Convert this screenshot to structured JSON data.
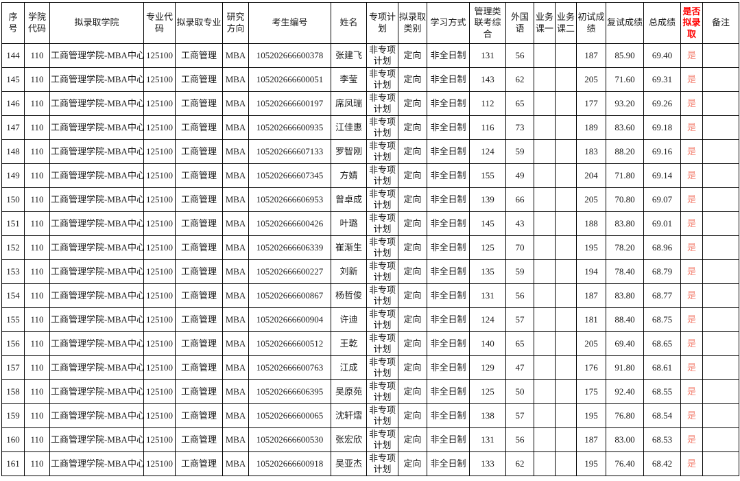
{
  "table": {
    "headers": [
      "序号",
      "学院代码",
      "拟录取学院",
      "专业代码",
      "拟录取专业",
      "研究方向",
      "考生编号",
      "姓名",
      "专项计划",
      "拟录取类别",
      "学习方式",
      "管理类联考综合",
      "外国语",
      "业务课一",
      "业务课二",
      "初试成绩",
      "复试成绩",
      "总成绩",
      "是否拟录取",
      "备注"
    ],
    "rows": [
      [
        "144",
        "110",
        "工商管理学院-MBA中心",
        "125100",
        "工商管理",
        "MBA",
        "105202666600378",
        "张建飞",
        "非专项计划",
        "定向",
        "非全日制",
        "131",
        "56",
        "",
        "",
        "187",
        "85.90",
        "69.40",
        "是",
        ""
      ],
      [
        "145",
        "110",
        "工商管理学院-MBA中心",
        "125100",
        "工商管理",
        "MBA",
        "105202666600051",
        "李莹",
        "非专项计划",
        "定向",
        "非全日制",
        "143",
        "62",
        "",
        "",
        "205",
        "71.60",
        "69.31",
        "是",
        ""
      ],
      [
        "146",
        "110",
        "工商管理学院-MBA中心",
        "125100",
        "工商管理",
        "MBA",
        "105202666600197",
        "席凤瑞",
        "非专项计划",
        "定向",
        "非全日制",
        "112",
        "65",
        "",
        "",
        "177",
        "93.20",
        "69.26",
        "是",
        ""
      ],
      [
        "147",
        "110",
        "工商管理学院-MBA中心",
        "125100",
        "工商管理",
        "MBA",
        "105202666600935",
        "江佳惠",
        "非专项计划",
        "定向",
        "非全日制",
        "116",
        "73",
        "",
        "",
        "189",
        "83.60",
        "69.18",
        "是",
        ""
      ],
      [
        "148",
        "110",
        "工商管理学院-MBA中心",
        "125100",
        "工商管理",
        "MBA",
        "105202666607133",
        "罗智刚",
        "非专项计划",
        "定向",
        "非全日制",
        "124",
        "59",
        "",
        "",
        "183",
        "88.20",
        "69.16",
        "是",
        ""
      ],
      [
        "149",
        "110",
        "工商管理学院-MBA中心",
        "125100",
        "工商管理",
        "MBA",
        "105202666607345",
        "方婧",
        "非专项计划",
        "定向",
        "非全日制",
        "155",
        "49",
        "",
        "",
        "204",
        "71.80",
        "69.14",
        "是",
        ""
      ],
      [
        "150",
        "110",
        "工商管理学院-MBA中心",
        "125100",
        "工商管理",
        "MBA",
        "105202666606953",
        "曾卓成",
        "非专项计划",
        "定向",
        "非全日制",
        "139",
        "66",
        "",
        "",
        "205",
        "70.80",
        "69.07",
        "是",
        ""
      ],
      [
        "151",
        "110",
        "工商管理学院-MBA中心",
        "125100",
        "工商管理",
        "MBA",
        "105202666600426",
        "叶璐",
        "非专项计划",
        "定向",
        "非全日制",
        "145",
        "43",
        "",
        "",
        "188",
        "83.80",
        "69.01",
        "是",
        ""
      ],
      [
        "152",
        "110",
        "工商管理学院-MBA中心",
        "125100",
        "工商管理",
        "MBA",
        "105202666606339",
        "崔渐生",
        "非专项计划",
        "定向",
        "非全日制",
        "125",
        "70",
        "",
        "",
        "195",
        "78.20",
        "68.96",
        "是",
        ""
      ],
      [
        "153",
        "110",
        "工商管理学院-MBA中心",
        "125100",
        "工商管理",
        "MBA",
        "105202666600227",
        "刘新",
        "非专项计划",
        "定向",
        "非全日制",
        "135",
        "59",
        "",
        "",
        "194",
        "78.40",
        "68.79",
        "是",
        ""
      ],
      [
        "154",
        "110",
        "工商管理学院-MBA中心",
        "125100",
        "工商管理",
        "MBA",
        "105202666600867",
        "杨哲俊",
        "非专项计划",
        "定向",
        "非全日制",
        "131",
        "56",
        "",
        "",
        "187",
        "83.80",
        "68.77",
        "是",
        ""
      ],
      [
        "155",
        "110",
        "工商管理学院-MBA中心",
        "125100",
        "工商管理",
        "MBA",
        "105202666600904",
        "许迪",
        "非专项计划",
        "定向",
        "非全日制",
        "124",
        "57",
        "",
        "",
        "181",
        "88.40",
        "68.75",
        "是",
        ""
      ],
      [
        "156",
        "110",
        "工商管理学院-MBA中心",
        "125100",
        "工商管理",
        "MBA",
        "105202666600512",
        "王乾",
        "非专项计划",
        "定向",
        "非全日制",
        "140",
        "65",
        "",
        "",
        "205",
        "69.40",
        "68.65",
        "是",
        ""
      ],
      [
        "157",
        "110",
        "工商管理学院-MBA中心",
        "125100",
        "工商管理",
        "MBA",
        "105202666600763",
        "江成",
        "非专项计划",
        "定向",
        "非全日制",
        "129",
        "47",
        "",
        "",
        "176",
        "91.80",
        "68.61",
        "是",
        ""
      ],
      [
        "158",
        "110",
        "工商管理学院-MBA中心",
        "125100",
        "工商管理",
        "MBA",
        "105202666606395",
        "吴原苑",
        "非专项计划",
        "定向",
        "非全日制",
        "125",
        "50",
        "",
        "",
        "175",
        "92.40",
        "68.55",
        "是",
        ""
      ],
      [
        "159",
        "110",
        "工商管理学院-MBA中心",
        "125100",
        "工商管理",
        "MBA",
        "105202666600065",
        "沈轩熠",
        "非专项计划",
        "定向",
        "非全日制",
        "138",
        "57",
        "",
        "",
        "195",
        "76.80",
        "68.54",
        "是",
        ""
      ],
      [
        "160",
        "110",
        "工商管理学院-MBA中心",
        "125100",
        "工商管理",
        "MBA",
        "105202666600530",
        "张宏欣",
        "非专项计划",
        "定向",
        "非全日制",
        "131",
        "56",
        "",
        "",
        "187",
        "83.00",
        "68.53",
        "是",
        ""
      ],
      [
        "161",
        "110",
        "工商管理学院-MBA中心",
        "125100",
        "工商管理",
        "MBA",
        "105202666600918",
        "吴亚杰",
        "非专项计划",
        "定向",
        "非全日制",
        "133",
        "62",
        "",
        "",
        "195",
        "76.40",
        "68.42",
        "是",
        ""
      ]
    ]
  },
  "colors": {
    "admit_header_red": "#ff0000",
    "admit_value_red": "#f48778",
    "grid_border": "#000000",
    "text": "#1a1a1a",
    "background": "#ffffff"
  }
}
